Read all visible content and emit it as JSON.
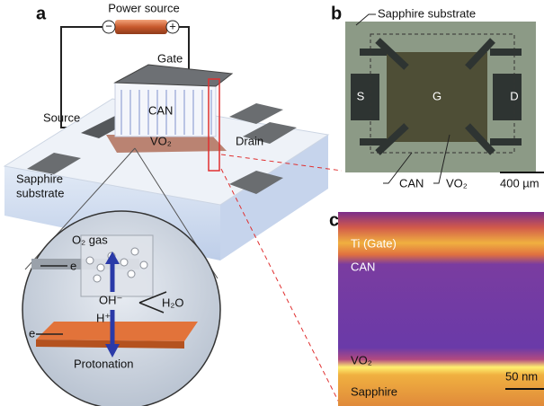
{
  "panel_a": {
    "label": "a",
    "power_source": "Power source",
    "battery_minus": "−",
    "battery_plus": "+",
    "gate": "Gate",
    "source": "Source",
    "can": "CAN",
    "vo2": "VO₂",
    "drain": "Drain",
    "substrate": [
      "Sapphire",
      "substrate"
    ],
    "inset": {
      "o2_gas": "O₂ gas",
      "electron_top": "e",
      "oh": "OH⁻",
      "h2o": "H₂O",
      "h_plus": "H⁺",
      "electron_bottom": "e",
      "protonation": "Protonation"
    }
  },
  "panel_b": {
    "label": "b",
    "substrate": "Sapphire substrate",
    "source": "S",
    "gate": "G",
    "drain": "D",
    "can": "CAN",
    "vo2": "VO₂",
    "scale_bar": "400 µm"
  },
  "panel_c": {
    "label": "c",
    "ti_gate": "Ti (Gate)",
    "can": "CAN",
    "vo2": "VO₂",
    "scale_bar": "50 nm",
    "sapphire": "Sapphire"
  }
}
